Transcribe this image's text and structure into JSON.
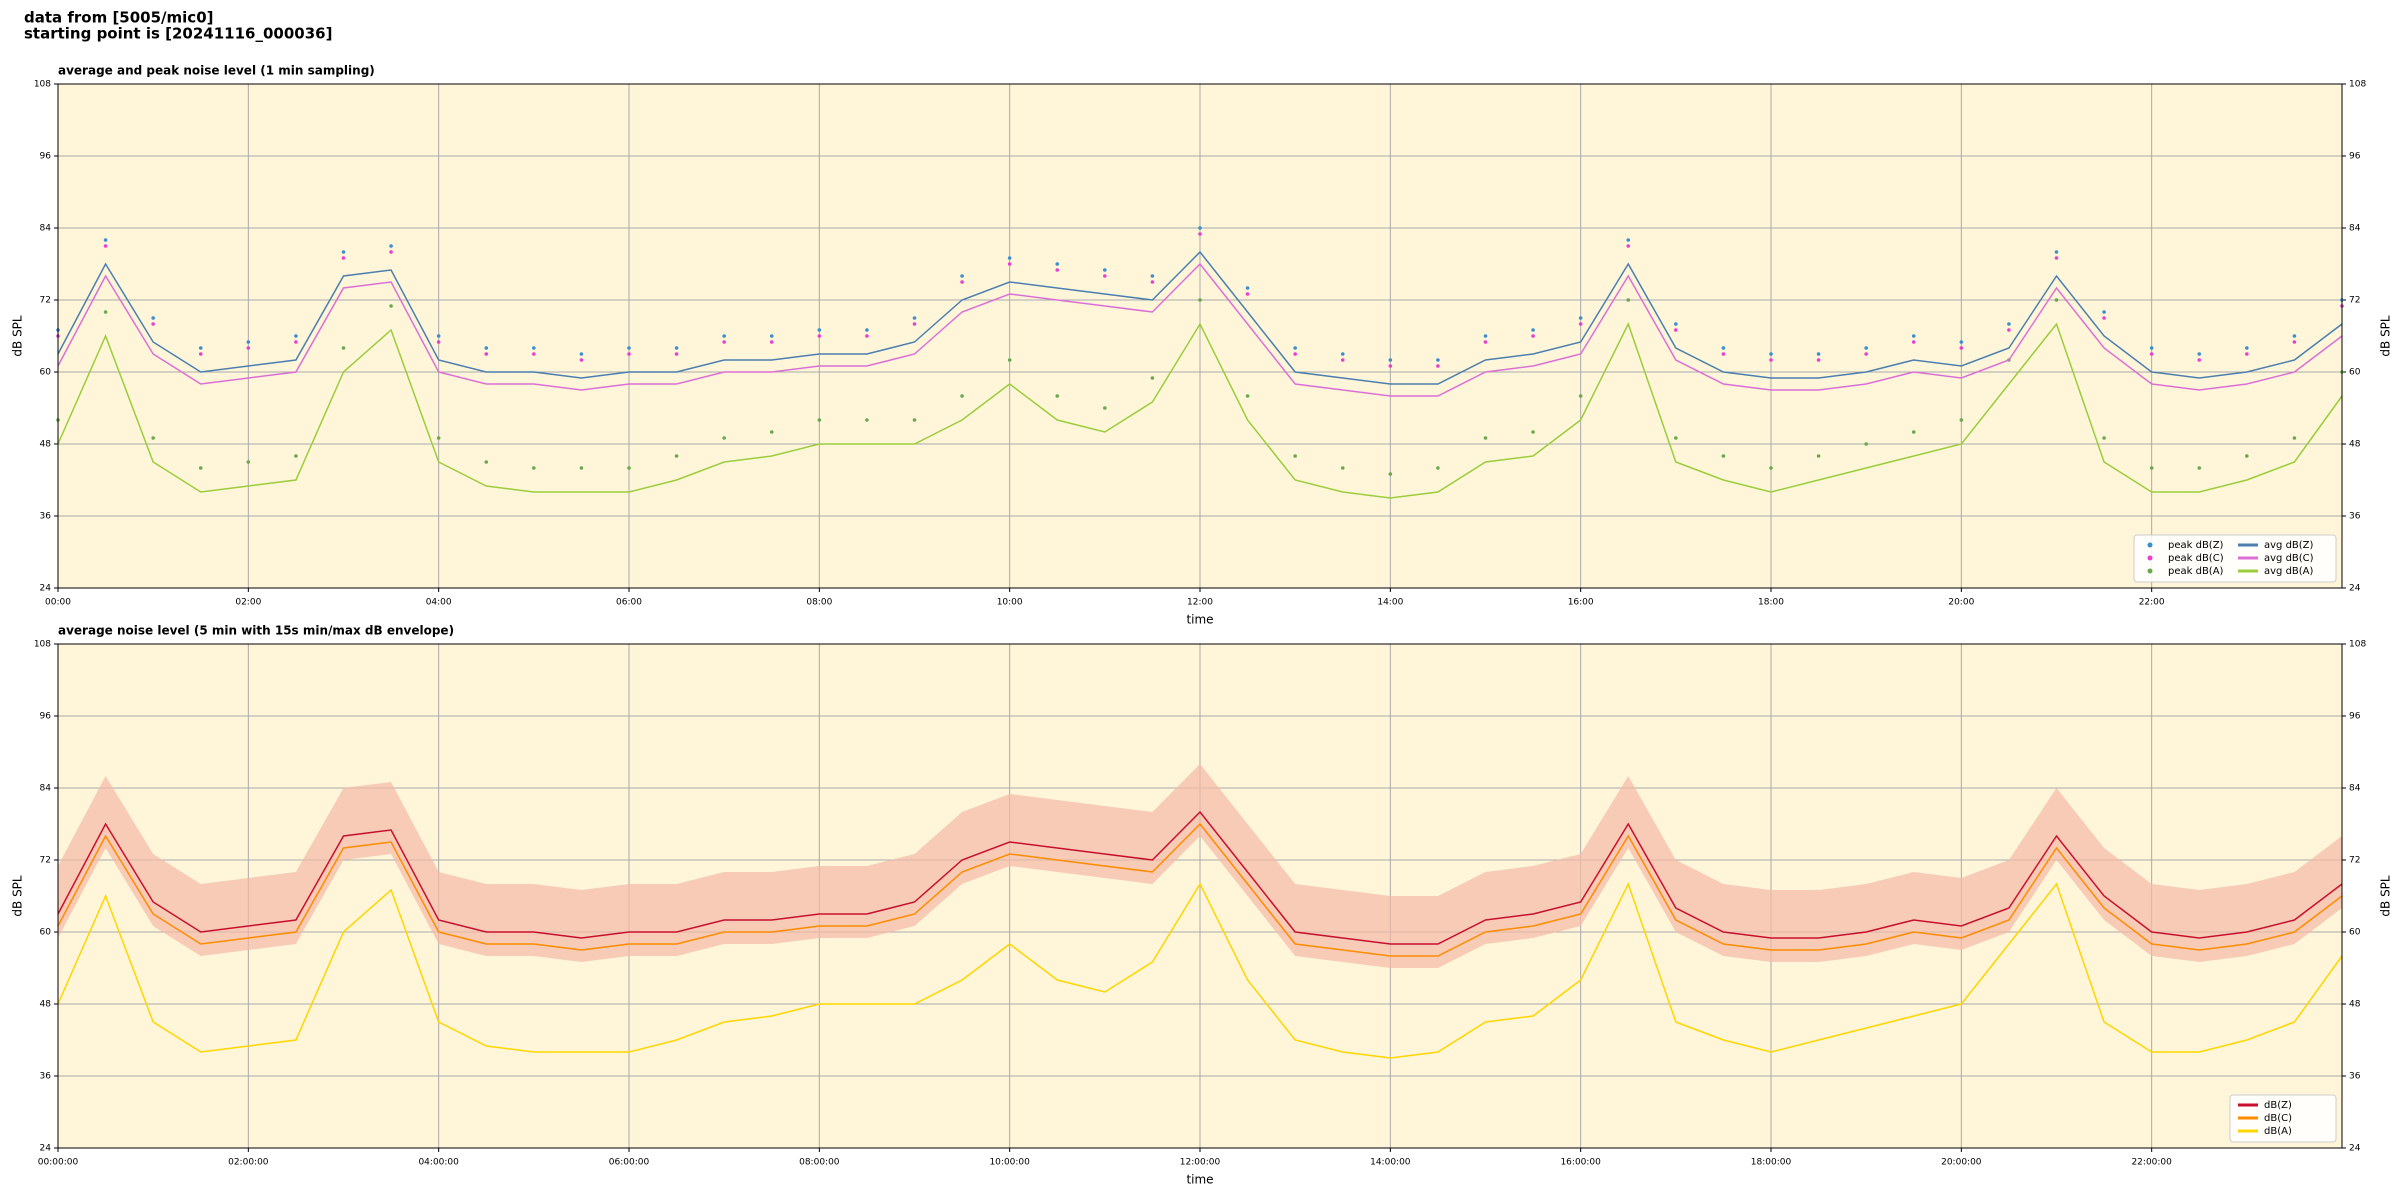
{
  "header": {
    "line1": "data from [5005/mic0]",
    "line2": "starting point is [20241116_000036]"
  },
  "chart_data": [
    {
      "type": "line",
      "title": "average and peak noise level (1 min sampling)",
      "xlabel": "time",
      "ylabel": "dB SPL",
      "y2label": "dB SPL",
      "background": "#fff6d9",
      "grid": true,
      "legend": "lower right",
      "legend_columns": 2,
      "x": [
        0,
        0.5,
        1,
        1.5,
        2,
        2.5,
        3,
        3.5,
        4,
        4.5,
        5,
        5.5,
        6,
        6.5,
        7,
        7.5,
        8,
        8.5,
        9,
        9.5,
        10,
        10.5,
        11,
        11.5,
        12,
        12.5,
        13,
        13.5,
        14,
        14.5,
        15,
        15.5,
        16,
        16.5,
        17,
        17.5,
        18,
        18.5,
        19,
        19.5,
        20,
        20.5,
        21,
        21.5,
        22,
        22.5,
        23,
        23.5,
        24
      ],
      "xlim": [
        0,
        24
      ],
      "xticks": [
        {
          "value": 0,
          "label": "00:00"
        },
        {
          "value": 2,
          "label": "02:00"
        },
        {
          "value": 4,
          "label": "04:00"
        },
        {
          "value": 6,
          "label": "06:00"
        },
        {
          "value": 8,
          "label": "08:00"
        },
        {
          "value": 10,
          "label": "10:00"
        },
        {
          "value": 12,
          "label": "12:00"
        },
        {
          "value": 14,
          "label": "14:00"
        },
        {
          "value": 16,
          "label": "16:00"
        },
        {
          "value": 18,
          "label": "18:00"
        },
        {
          "value": 20,
          "label": "20:00"
        },
        {
          "value": 22,
          "label": "22:00"
        }
      ],
      "ylim": [
        24,
        108
      ],
      "yticks": [
        24,
        36,
        48,
        60,
        72,
        84,
        96,
        108
      ],
      "y2lim": [
        24,
        108
      ],
      "y2ticks": [
        24,
        36,
        48,
        60,
        72,
        84,
        96,
        108
      ],
      "series": [
        {
          "name": "peak dB(Z)",
          "style": "scatter",
          "color": "#3b8ed0",
          "values": [
            67,
            82,
            69,
            64,
            65,
            66,
            80,
            81,
            66,
            64,
            64,
            63,
            64,
            64,
            66,
            66,
            67,
            67,
            69,
            76,
            79,
            78,
            77,
            76,
            84,
            74,
            64,
            63,
            62,
            62,
            66,
            67,
            69,
            82,
            68,
            64,
            63,
            63,
            64,
            66,
            65,
            68,
            80,
            70,
            64,
            63,
            64,
            66,
            72
          ]
        },
        {
          "name": "peak dB(C)",
          "style": "scatter",
          "color": "#e83fd0",
          "values": [
            66,
            81,
            68,
            63,
            64,
            65,
            79,
            80,
            65,
            63,
            63,
            62,
            63,
            63,
            65,
            65,
            66,
            66,
            68,
            75,
            78,
            77,
            76,
            75,
            83,
            73,
            63,
            62,
            61,
            61,
            65,
            66,
            68,
            81,
            67,
            63,
            62,
            62,
            63,
            65,
            64,
            67,
            79,
            69,
            63,
            62,
            63,
            65,
            71
          ]
        },
        {
          "name": "peak dB(A)",
          "style": "scatter",
          "color": "#6aa84f",
          "values": [
            52,
            70,
            49,
            44,
            45,
            46,
            64,
            71,
            49,
            45,
            44,
            44,
            44,
            46,
            49,
            50,
            52,
            52,
            52,
            56,
            62,
            56,
            54,
            59,
            72,
            56,
            46,
            44,
            43,
            44,
            49,
            50,
            56,
            72,
            49,
            46,
            44,
            46,
            48,
            50,
            52,
            62,
            72,
            49,
            44,
            44,
            46,
            49,
            60
          ]
        },
        {
          "name": "avg dB(Z)",
          "style": "line",
          "color": "#4a7fb0",
          "values": [
            63,
            78,
            65,
            60,
            61,
            62,
            76,
            77,
            62,
            60,
            60,
            59,
            60,
            60,
            62,
            62,
            63,
            63,
            65,
            72,
            75,
            74,
            73,
            72,
            80,
            70,
            60,
            59,
            58,
            58,
            62,
            63,
            65,
            78,
            64,
            60,
            59,
            59,
            60,
            62,
            61,
            64,
            76,
            66,
            60,
            59,
            60,
            62,
            68
          ]
        },
        {
          "name": "avg dB(C)",
          "style": "line",
          "color": "#dc6fd6",
          "values": [
            61,
            76,
            63,
            58,
            59,
            60,
            74,
            75,
            60,
            58,
            58,
            57,
            58,
            58,
            60,
            60,
            61,
            61,
            63,
            70,
            73,
            72,
            71,
            70,
            78,
            68,
            58,
            57,
            56,
            56,
            60,
            61,
            63,
            76,
            62,
            58,
            57,
            57,
            58,
            60,
            59,
            62,
            74,
            64,
            58,
            57,
            58,
            60,
            66
          ]
        },
        {
          "name": "avg dB(A)",
          "style": "line",
          "color": "#9acd3c",
          "values": [
            48,
            66,
            45,
            40,
            41,
            42,
            60,
            67,
            45,
            41,
            40,
            40,
            40,
            42,
            45,
            46,
            48,
            48,
            48,
            52,
            58,
            52,
            50,
            55,
            68,
            52,
            42,
            40,
            39,
            40,
            45,
            46,
            52,
            68,
            45,
            42,
            40,
            42,
            44,
            46,
            48,
            58,
            68,
            45,
            40,
            40,
            42,
            45,
            56
          ]
        }
      ]
    },
    {
      "type": "line",
      "title": "average noise level (5 min with 15s min/max dB envelope)",
      "xlabel": "time",
      "ylabel": "dB SPL",
      "y2label": "dB SPL",
      "background": "#fff6d9",
      "grid": true,
      "legend": "lower right",
      "legend_columns": 1,
      "x": [
        0,
        0.5,
        1,
        1.5,
        2,
        2.5,
        3,
        3.5,
        4,
        4.5,
        5,
        5.5,
        6,
        6.5,
        7,
        7.5,
        8,
        8.5,
        9,
        9.5,
        10,
        10.5,
        11,
        11.5,
        12,
        12.5,
        13,
        13.5,
        14,
        14.5,
        15,
        15.5,
        16,
        16.5,
        17,
        17.5,
        18,
        18.5,
        19,
        19.5,
        20,
        20.5,
        21,
        21.5,
        22,
        22.5,
        23,
        23.5,
        24
      ],
      "xlim": [
        0,
        24
      ],
      "xticks": [
        {
          "value": 0,
          "label": "00:00:00"
        },
        {
          "value": 2,
          "label": "02:00:00"
        },
        {
          "value": 4,
          "label": "04:00:00"
        },
        {
          "value": 6,
          "label": "06:00:00"
        },
        {
          "value": 8,
          "label": "08:00:00"
        },
        {
          "value": 10,
          "label": "10:00:00"
        },
        {
          "value": 12,
          "label": "12:00:00"
        },
        {
          "value": 14,
          "label": "14:00:00"
        },
        {
          "value": 16,
          "label": "16:00:00"
        },
        {
          "value": 18,
          "label": "18:00:00"
        },
        {
          "value": 20,
          "label": "20:00:00"
        },
        {
          "value": 22,
          "label": "22:00:00"
        }
      ],
      "ylim": [
        24,
        108
      ],
      "yticks": [
        24,
        36,
        48,
        60,
        72,
        84,
        96,
        108
      ],
      "y2lim": [
        24,
        108
      ],
      "y2ticks": [
        24,
        36,
        48,
        60,
        72,
        84,
        96,
        108
      ],
      "band": {
        "color": "#f3b9a6",
        "low": [
          59,
          74,
          61,
          56,
          57,
          58,
          72,
          73,
          58,
          56,
          56,
          55,
          56,
          56,
          58,
          58,
          59,
          59,
          61,
          68,
          71,
          70,
          69,
          68,
          76,
          66,
          56,
          55,
          54,
          54,
          58,
          59,
          61,
          74,
          60,
          56,
          55,
          55,
          56,
          58,
          57,
          60,
          72,
          62,
          56,
          55,
          56,
          58,
          64
        ],
        "high": [
          71,
          86,
          73,
          68,
          69,
          70,
          84,
          85,
          70,
          68,
          68,
          67,
          68,
          68,
          70,
          70,
          71,
          71,
          73,
          80,
          83,
          82,
          81,
          80,
          88,
          78,
          68,
          67,
          66,
          66,
          70,
          71,
          73,
          86,
          72,
          68,
          67,
          67,
          68,
          70,
          69,
          72,
          84,
          74,
          68,
          67,
          68,
          70,
          76
        ]
      },
      "series": [
        {
          "name": "dB(Z)",
          "style": "line",
          "color": "#c8102e",
          "values": [
            63,
            78,
            65,
            60,
            61,
            62,
            76,
            77,
            62,
            60,
            60,
            59,
            60,
            60,
            62,
            62,
            63,
            63,
            65,
            72,
            75,
            74,
            73,
            72,
            80,
            70,
            60,
            59,
            58,
            58,
            62,
            63,
            65,
            78,
            64,
            60,
            59,
            59,
            60,
            62,
            61,
            64,
            76,
            66,
            60,
            59,
            60,
            62,
            68
          ]
        },
        {
          "name": "dB(C)",
          "style": "line",
          "color": "#ff8c00",
          "values": [
            61,
            76,
            63,
            58,
            59,
            60,
            74,
            75,
            60,
            58,
            58,
            57,
            58,
            58,
            60,
            60,
            61,
            61,
            63,
            70,
            73,
            72,
            71,
            70,
            78,
            68,
            58,
            57,
            56,
            56,
            60,
            61,
            63,
            76,
            62,
            58,
            57,
            57,
            58,
            60,
            59,
            62,
            74,
            64,
            58,
            57,
            58,
            60,
            66
          ]
        },
        {
          "name": "dB(A)",
          "style": "line",
          "color": "#ffd500",
          "values": [
            48,
            66,
            45,
            40,
            41,
            42,
            60,
            67,
            45,
            41,
            40,
            40,
            40,
            42,
            45,
            46,
            48,
            48,
            48,
            52,
            58,
            52,
            50,
            55,
            68,
            52,
            42,
            40,
            39,
            40,
            45,
            46,
            52,
            68,
            45,
            42,
            40,
            42,
            44,
            46,
            48,
            58,
            68,
            45,
            40,
            40,
            42,
            45,
            56
          ]
        }
      ]
    }
  ]
}
